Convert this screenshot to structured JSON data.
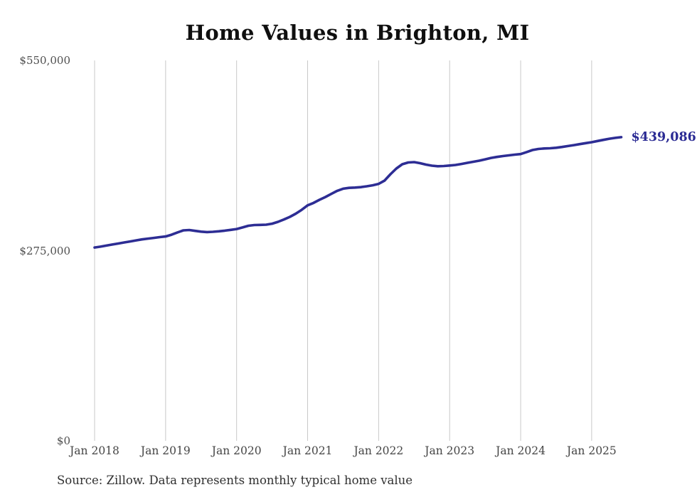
{
  "title": "Home Values in Brighton, MI",
  "source_note": "Source: Zillow. Data represents monthly typical home value",
  "end_value_label": "$439,086",
  "colors": {
    "background": "#ffffff",
    "line": "#2d2d94",
    "end_label": "#2b2b94",
    "gridline": "#c8c8c8",
    "y_axis_text": "#4f4f4f",
    "x_axis_text": "#454545",
    "title_text": "#0f0f0f",
    "source_text": "#303030"
  },
  "chart_data": {
    "type": "line",
    "title": "Home Values in Brighton, MI",
    "xlabel": "",
    "ylabel": "",
    "ylim": [
      0,
      550000
    ],
    "grid": "vertical-only",
    "legend": "none",
    "y_ticks": [
      {
        "value": 0,
        "label": "$0"
      },
      {
        "value": 275000,
        "label": "$275,000"
      },
      {
        "value": 550000,
        "label": "$550,000"
      }
    ],
    "x_tick_labels": [
      "Jan 2018",
      "Jan 2019",
      "Jan 2020",
      "Jan 2021",
      "Jan 2022",
      "Jan 2023",
      "Jan 2024",
      "Jan 2025"
    ],
    "frequency": "monthly",
    "x": [
      "2018-01",
      "2018-02",
      "2018-03",
      "2018-04",
      "2018-05",
      "2018-06",
      "2018-07",
      "2018-08",
      "2018-09",
      "2018-10",
      "2018-11",
      "2018-12",
      "2019-01",
      "2019-02",
      "2019-03",
      "2019-04",
      "2019-05",
      "2019-06",
      "2019-07",
      "2019-08",
      "2019-09",
      "2019-10",
      "2019-11",
      "2019-12",
      "2020-01",
      "2020-02",
      "2020-03",
      "2020-04",
      "2020-05",
      "2020-06",
      "2020-07",
      "2020-08",
      "2020-09",
      "2020-10",
      "2020-11",
      "2020-12",
      "2021-01",
      "2021-02",
      "2021-03",
      "2021-04",
      "2021-05",
      "2021-06",
      "2021-07",
      "2021-08",
      "2021-09",
      "2021-10",
      "2021-11",
      "2021-12",
      "2022-01",
      "2022-02",
      "2022-03",
      "2022-04",
      "2022-05",
      "2022-06",
      "2022-07",
      "2022-08",
      "2022-09",
      "2022-10",
      "2022-11",
      "2022-12",
      "2023-01",
      "2023-02",
      "2023-03",
      "2023-04",
      "2023-05",
      "2023-06",
      "2023-07",
      "2023-08",
      "2023-09",
      "2023-10",
      "2023-11",
      "2023-12",
      "2024-01",
      "2024-02",
      "2024-03",
      "2024-04",
      "2024-05",
      "2024-06",
      "2024-07",
      "2024-08",
      "2024-09",
      "2024-10",
      "2024-11",
      "2024-12",
      "2025-01",
      "2025-02",
      "2025-03",
      "2025-04",
      "2025-05",
      "2025-06"
    ],
    "series": [
      {
        "name": "Typical home value",
        "final_value": 439086,
        "values": [
          279500,
          280800,
          282300,
          283800,
          285300,
          286800,
          288300,
          289800,
          291200,
          292400,
          293400,
          294500,
          295500,
          298000,
          301300,
          304300,
          304800,
          303600,
          302400,
          301800,
          302200,
          303000,
          303900,
          305000,
          306300,
          308500,
          311000,
          312000,
          312200,
          312500,
          314000,
          316600,
          320000,
          323800,
          328500,
          334000,
          340500,
          344000,
          348500,
          352500,
          357000,
          361500,
          364500,
          365800,
          366200,
          366800,
          368000,
          369500,
          371500,
          376300,
          385500,
          393700,
          399900,
          402500,
          403000,
          401400,
          399400,
          397800,
          397000,
          397300,
          398100,
          398900,
          400300,
          402000,
          403500,
          405000,
          407000,
          409100,
          410500,
          411700,
          412800,
          413800,
          414600,
          417500,
          420500,
          422000,
          422700,
          423000,
          423800,
          424900,
          426200,
          427600,
          429000,
          430400,
          431800,
          433500,
          435200,
          436800,
          438000,
          439086
        ]
      }
    ]
  }
}
